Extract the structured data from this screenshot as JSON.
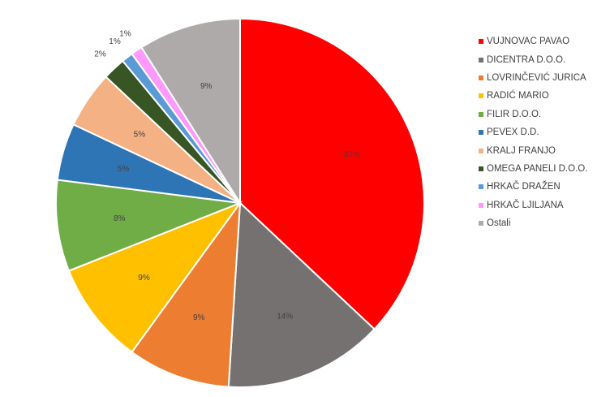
{
  "chart_data": {
    "type": "pie",
    "title": "",
    "legend_position": "right",
    "slices": [
      {
        "name": "VUJNOVAC PAVAO",
        "value": 37,
        "label": "37%",
        "color": "#FF0000"
      },
      {
        "name": "DICENTRA D.O.O.",
        "value": 14,
        "label": "14%",
        "color": "#767171"
      },
      {
        "name": "LOVRINČEVIĆ JURICA",
        "value": 9,
        "label": "9%",
        "color": "#ED7D31"
      },
      {
        "name": "RADIĆ MARIO",
        "value": 9,
        "label": "9%",
        "color": "#FFC000"
      },
      {
        "name": "FILIR D.O.O.",
        "value": 8,
        "label": "8%",
        "color": "#70AD47"
      },
      {
        "name": "PEVEX D.D.",
        "value": 5,
        "label": "5%",
        "color": "#2E75B6"
      },
      {
        "name": "KRALJ FRANJO",
        "value": 5,
        "label": "5%",
        "color": "#F4B183"
      },
      {
        "name": "OMEGA PANELI D.O.O.",
        "value": 2,
        "label": "2%",
        "color": "#375623"
      },
      {
        "name": "HRKAČ DRAŽEN",
        "value": 1,
        "label": "1%",
        "color": "#5B9BD5"
      },
      {
        "name": "HRKAČ LJILJANA",
        "value": 1,
        "label": "1%",
        "color": "#FF99FF"
      },
      {
        "name": "Ostali",
        "value": 9,
        "label": "9%",
        "color": "#AEAAAA"
      }
    ]
  }
}
